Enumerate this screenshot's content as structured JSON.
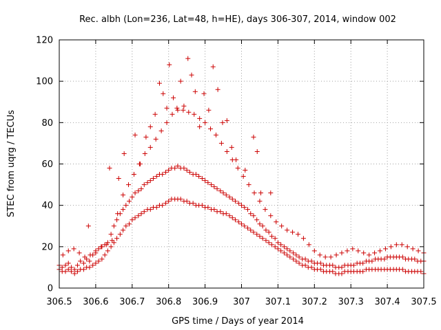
{
  "chart_data": {
    "type": "scatter",
    "title": "Rec. albh (Lon=236, Lat=48, h=HE), days 306-307, 2014, window 002",
    "xlabel": "GPS time / Days of year 2014",
    "ylabel": "STEC from uqrg / TECUs",
    "xlim": [
      306.5,
      307.5
    ],
    "ylim": [
      0,
      120
    ],
    "x_ticks": [
      306.5,
      306.6,
      306.7,
      306.8,
      306.9,
      307.0,
      307.1,
      307.2,
      307.3,
      307.4,
      307.5
    ],
    "x_tick_labels": [
      "306.5",
      "306.6",
      "306.7",
      "306.8",
      "306.9",
      "307",
      "307.1",
      "307.2",
      "307.3",
      "307.4",
      "307.5"
    ],
    "y_ticks": [
      0,
      20,
      40,
      60,
      80,
      100,
      120
    ],
    "y_tick_labels": [
      "0",
      "20",
      "40",
      "60",
      "80",
      "100",
      "120"
    ],
    "grid": true,
    "marker": "+",
    "color": "#cc0000",
    "series": [
      {
        "x": [
          306.5,
          306.508,
          306.517,
          306.525,
          306.533,
          306.542,
          306.55,
          306.558,
          306.567,
          306.575,
          306.583,
          306.592,
          306.6,
          306.608,
          306.617,
          306.625,
          306.633,
          306.642,
          306.65,
          306.658,
          306.667,
          306.675,
          306.683,
          306.692,
          306.7,
          306.708,
          306.717,
          306.725,
          306.733,
          306.742,
          306.75,
          306.758,
          306.767,
          306.775,
          306.783,
          306.792,
          306.8,
          306.808,
          306.817,
          306.825,
          306.833,
          306.842,
          306.85,
          306.858,
          306.867,
          306.875,
          306.883,
          306.892,
          306.9,
          306.908,
          306.917,
          306.925,
          306.933,
          306.942,
          306.95,
          306.958,
          306.967,
          306.975,
          306.983,
          306.992,
          307.0,
          307.008,
          307.017,
          307.025,
          307.033,
          307.042,
          307.05,
          307.058,
          307.067,
          307.075,
          307.083,
          307.092,
          307.1,
          307.108,
          307.117,
          307.125,
          307.133,
          307.142,
          307.15,
          307.158,
          307.167,
          307.175,
          307.183,
          307.192,
          307.2,
          307.208,
          307.217,
          307.225,
          307.233,
          307.242,
          307.25,
          307.258,
          307.267,
          307.275,
          307.283,
          307.292,
          307.3,
          307.308,
          307.317,
          307.325,
          307.333,
          307.342,
          307.35,
          307.358,
          307.367,
          307.375,
          307.383,
          307.392,
          307.4,
          307.408,
          307.417,
          307.425,
          307.433,
          307.442,
          307.45,
          307.458,
          307.467,
          307.475,
          307.483,
          307.492,
          307.5
        ],
        "y": [
          11,
          10,
          11,
          12,
          10,
          9,
          11,
          13,
          12,
          14,
          13,
          16,
          17,
          19,
          20,
          21,
          22,
          26,
          30,
          33,
          36,
          38,
          40,
          42,
          44,
          46,
          47,
          48,
          50,
          51,
          52,
          53,
          54,
          55,
          55,
          56,
          57,
          58,
          58,
          59,
          58,
          58,
          57,
          56,
          55,
          55,
          54,
          53,
          52,
          51,
          50,
          49,
          48,
          47,
          46,
          45,
          44,
          43,
          42,
          41,
          40,
          39,
          38,
          36,
          35,
          33,
          31,
          30,
          28,
          27,
          25,
          24,
          22,
          21,
          20,
          19,
          18,
          17,
          16,
          15,
          14,
          14,
          13,
          13,
          12,
          12,
          12,
          11,
          11,
          11,
          11,
          10,
          10,
          10,
          11,
          11,
          11,
          11,
          12,
          12,
          12,
          13,
          13,
          13,
          14,
          14,
          14,
          14,
          15,
          15,
          15,
          15,
          15,
          15,
          14,
          14,
          14,
          14,
          13,
          13,
          13
        ]
      },
      {
        "x": [
          306.5,
          306.508,
          306.517,
          306.525,
          306.533,
          306.542,
          306.55,
          306.558,
          306.567,
          306.575,
          306.583,
          306.592,
          306.6,
          306.608,
          306.617,
          306.625,
          306.633,
          306.642,
          306.65,
          306.658,
          306.667,
          306.675,
          306.683,
          306.692,
          306.7,
          306.708,
          306.717,
          306.725,
          306.733,
          306.742,
          306.75,
          306.758,
          306.767,
          306.775,
          306.783,
          306.792,
          306.8,
          306.808,
          306.817,
          306.825,
          306.833,
          306.842,
          306.85,
          306.858,
          306.867,
          306.875,
          306.883,
          306.892,
          306.9,
          306.908,
          306.917,
          306.925,
          306.933,
          306.942,
          306.95,
          306.958,
          306.967,
          306.975,
          306.983,
          306.992,
          307.0,
          307.008,
          307.017,
          307.025,
          307.033,
          307.042,
          307.05,
          307.058,
          307.067,
          307.075,
          307.083,
          307.092,
          307.1,
          307.108,
          307.117,
          307.125,
          307.133,
          307.142,
          307.15,
          307.158,
          307.167,
          307.175,
          307.183,
          307.192,
          307.2,
          307.208,
          307.217,
          307.225,
          307.233,
          307.242,
          307.25,
          307.258,
          307.267,
          307.275,
          307.283,
          307.292,
          307.3,
          307.308,
          307.317,
          307.325,
          307.333,
          307.342,
          307.35,
          307.358,
          307.367,
          307.375,
          307.383,
          307.392,
          307.4,
          307.408,
          307.417,
          307.425,
          307.433,
          307.442,
          307.45,
          307.458,
          307.467,
          307.475,
          307.483,
          307.492,
          307.5
        ],
        "y": [
          9,
          8,
          8,
          9,
          8,
          7,
          8,
          9,
          9,
          10,
          10,
          11,
          12,
          13,
          14,
          16,
          18,
          20,
          22,
          24,
          26,
          28,
          30,
          31,
          33,
          34,
          35,
          36,
          37,
          38,
          38,
          39,
          39,
          40,
          40,
          41,
          42,
          43,
          43,
          43,
          43,
          42,
          42,
          41,
          41,
          40,
          40,
          40,
          39,
          39,
          38,
          38,
          37,
          37,
          36,
          36,
          35,
          34,
          33,
          32,
          31,
          30,
          29,
          28,
          27,
          26,
          25,
          24,
          23,
          22,
          21,
          20,
          19,
          18,
          17,
          16,
          15,
          14,
          13,
          12,
          11,
          11,
          10,
          10,
          9,
          9,
          9,
          8,
          8,
          8,
          8,
          7,
          7,
          7,
          8,
          8,
          8,
          8,
          8,
          8,
          8,
          9,
          9,
          9,
          9,
          9,
          9,
          9,
          9,
          9,
          9,
          9,
          9,
          9,
          8,
          8,
          8,
          8,
          8,
          8,
          7
        ]
      },
      {
        "x": [
          306.51,
          306.525,
          306.54,
          306.555,
          306.57,
          306.585,
          306.6,
          306.615,
          306.63,
          306.645,
          306.66,
          306.675,
          306.69,
          306.705,
          306.72,
          306.735,
          306.75,
          306.765,
          306.78,
          306.795,
          306.81,
          306.825,
          306.84,
          306.855,
          306.87,
          306.885,
          306.9,
          306.915,
          306.93,
          306.945,
          306.96,
          306.975,
          306.99,
          307.005,
          307.02,
          307.035,
          307.05,
          307.065,
          307.08,
          307.095,
          307.11,
          307.125,
          307.14,
          307.155,
          307.17,
          307.185,
          307.2,
          307.215,
          307.23,
          307.245,
          307.26,
          307.275,
          307.29,
          307.305,
          307.32,
          307.335,
          307.35,
          307.365,
          307.38,
          307.395,
          307.41,
          307.425,
          307.44,
          307.455,
          307.47,
          307.485,
          307.5
        ],
        "y": [
          16,
          18,
          19,
          17,
          15,
          16,
          18,
          20,
          21,
          23,
          36,
          45,
          50,
          55,
          60,
          65,
          68,
          72,
          76,
          80,
          84,
          86,
          86,
          85,
          84,
          82,
          80,
          77,
          74,
          70,
          66,
          62,
          58,
          54,
          50,
          46,
          42,
          38,
          35,
          32,
          30,
          28,
          27,
          26,
          24,
          21,
          18,
          16,
          15,
          15,
          16,
          17,
          18,
          19,
          18,
          17,
          16,
          17,
          18,
          19,
          20,
          21,
          21,
          20,
          19,
          18,
          17
        ]
      },
      {
        "x": [
          306.58,
          306.638,
          306.663,
          306.678,
          306.708,
          306.722,
          306.738,
          306.75,
          306.763,
          306.775,
          306.785,
          306.795,
          306.802,
          306.813,
          306.823,
          306.833,
          306.842,
          306.853,
          306.863,
          306.873,
          306.885,
          306.897,
          306.91,
          306.922,
          306.935,
          306.948,
          306.96,
          306.973,
          306.985,
          307.01,
          307.033,
          307.043,
          307.053,
          307.08
        ],
        "y": [
          30,
          58,
          53,
          65,
          74,
          60,
          73,
          78,
          84,
          99,
          94,
          87,
          108,
          92,
          87,
          100,
          88,
          111,
          103,
          95,
          78,
          94,
          86,
          107,
          96,
          80,
          81,
          68,
          62,
          57,
          73,
          66,
          46,
          46
        ]
      }
    ]
  }
}
